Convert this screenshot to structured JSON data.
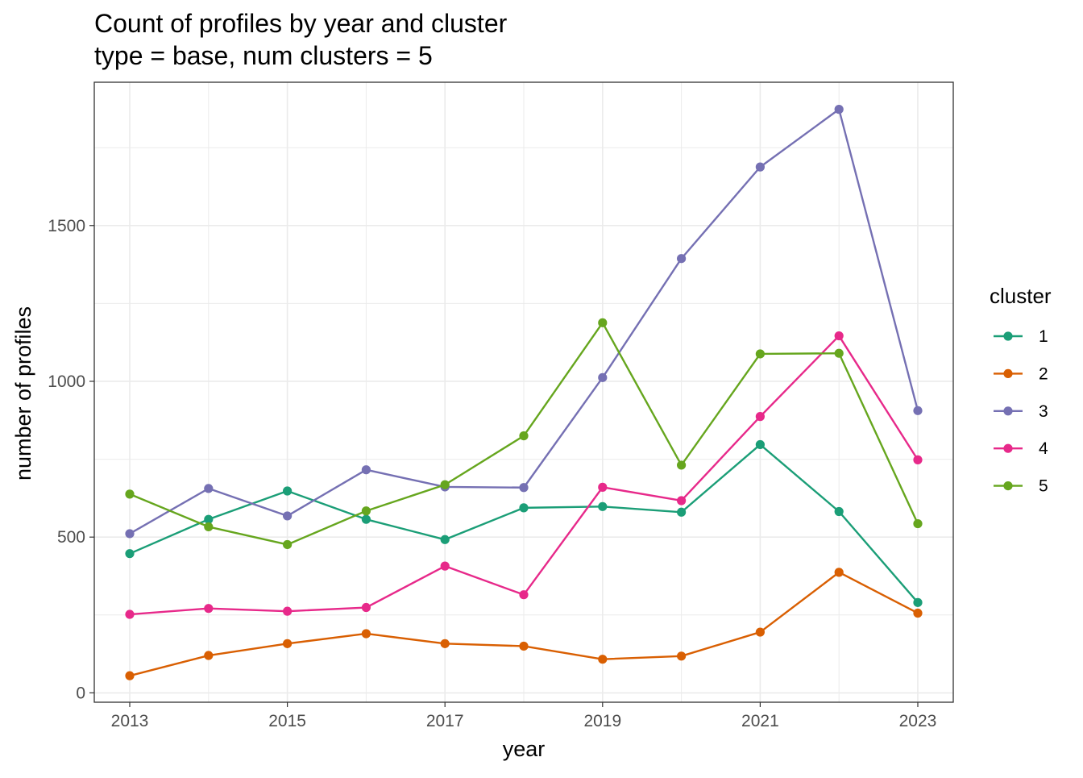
{
  "chart_data": {
    "type": "line",
    "title": "Count of profiles by year and cluster",
    "subtitle": "type = base, num clusters = 5",
    "xlabel": "year",
    "ylabel": "number of profiles",
    "x": [
      2013,
      2014,
      2015,
      2016,
      2017,
      2018,
      2019,
      2020,
      2021,
      2022,
      2023
    ],
    "x_ticks": [
      "2013",
      "2015",
      "2017",
      "2019",
      "2021",
      "2023"
    ],
    "y_ticks": [
      "0",
      "500",
      "1000",
      "1500"
    ],
    "xlim": [
      2012.55,
      2023.45
    ],
    "ylim": [
      -30,
      1960
    ],
    "grid": true,
    "legend": {
      "title": "cluster",
      "position": "right"
    },
    "series": [
      {
        "name": "1",
        "color": "#1b9e77",
        "values": [
          447,
          557,
          648,
          557,
          492,
          594,
          598,
          580,
          797,
          582,
          290
        ]
      },
      {
        "name": "2",
        "color": "#d95f02",
        "values": [
          55,
          120,
          158,
          190,
          158,
          150,
          108,
          118,
          195,
          387,
          256
        ]
      },
      {
        "name": "3",
        "color": "#7570b3",
        "values": [
          511,
          656,
          568,
          716,
          661,
          659,
          1012,
          1394,
          1688,
          1873,
          906
        ]
      },
      {
        "name": "4",
        "color": "#e7298a",
        "values": [
          252,
          271,
          262,
          274,
          407,
          315,
          660,
          617,
          887,
          1146,
          748
        ]
      },
      {
        "name": "5",
        "color": "#66a61e",
        "values": [
          638,
          533,
          476,
          584,
          668,
          825,
          1188,
          731,
          1088,
          1090,
          543
        ]
      }
    ]
  }
}
